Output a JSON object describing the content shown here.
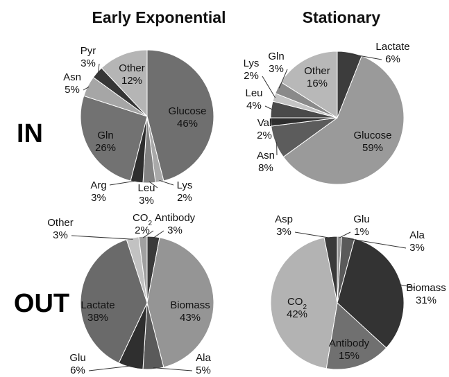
{
  "columns": [
    "Early Exponential",
    "Stationary"
  ],
  "rows": [
    "IN",
    "OUT"
  ],
  "chart_data": [
    {
      "type": "pie",
      "column": "Early Exponential",
      "row": "IN",
      "slices": [
        {
          "name": "Glucose",
          "pct": "46%",
          "value": 46,
          "color": "#6f6f6f"
        },
        {
          "name": "Lys",
          "pct": "2%",
          "value": 2,
          "color": "#a9a9a9"
        },
        {
          "name": "Leu",
          "pct": "3%",
          "value": 3,
          "color": "#838383"
        },
        {
          "name": "Arg",
          "pct": "3%",
          "value": 3,
          "color": "#2e2e2e"
        },
        {
          "name": "Gln",
          "pct": "26%",
          "value": 26,
          "color": "#727272"
        },
        {
          "name": "Asn",
          "pct": "5%",
          "value": 5,
          "color": "#a6a6a6"
        },
        {
          "name": "Pyr",
          "pct": "3%",
          "value": 3,
          "color": "#363636"
        },
        {
          "name": "Other",
          "pct": "12%",
          "value": 12,
          "color": "#b5b5b5"
        }
      ]
    },
    {
      "type": "pie",
      "column": "Stationary",
      "row": "IN",
      "slices": [
        {
          "name": "Lactate",
          "pct": "6%",
          "value": 6,
          "color": "#3c3c3c"
        },
        {
          "name": "Glucose",
          "pct": "59%",
          "value": 59,
          "color": "#9a9a9a"
        },
        {
          "name": "Asn",
          "pct": "8%",
          "value": 8,
          "color": "#5c5c5c"
        },
        {
          "name": "Val",
          "pct": "2%",
          "value": 2,
          "color": "#2e2e2e"
        },
        {
          "name": "Leu",
          "pct": "4%",
          "value": 4,
          "color": "#4a4a4a"
        },
        {
          "name": "Lys",
          "pct": "2%",
          "value": 2,
          "color": "#c4c4c4"
        },
        {
          "name": "Gln",
          "pct": "3%",
          "value": 3,
          "color": "#8a8a8a"
        },
        {
          "name": "Other",
          "pct": "16%",
          "value": 16,
          "color": "#b8b8b8"
        }
      ]
    },
    {
      "type": "pie",
      "column": "Early Exponential",
      "row": "OUT",
      "slices": [
        {
          "name": "Antibody",
          "pct": "3%",
          "value": 3,
          "color": "#3a3a3a"
        },
        {
          "name": "Biomass",
          "pct": "43%",
          "value": 43,
          "color": "#959595"
        },
        {
          "name": "Ala",
          "pct": "5%",
          "value": 5,
          "color": "#5a5a5a"
        },
        {
          "name": "Glu",
          "pct": "6%",
          "value": 6,
          "color": "#2f2f2f"
        },
        {
          "name": "Lactate",
          "pct": "38%",
          "value": 38,
          "color": "#6a6a6a"
        },
        {
          "name": "Other",
          "pct": "3%",
          "value": 3,
          "color": "#c2c2c2"
        },
        {
          "name": "CO",
          "sub": "2",
          "pct": "2%",
          "value": 2,
          "color": "#a0a0a0"
        }
      ]
    },
    {
      "type": "pie",
      "column": "Stationary",
      "row": "OUT",
      "slices": [
        {
          "name": "Glu",
          "pct": "1%",
          "value": 1,
          "color": "#9a9a9a"
        },
        {
          "name": "Ala",
          "pct": "3%",
          "value": 3,
          "color": "#5a5a5a"
        },
        {
          "name": "Biomass",
          "pct": "31%",
          "value": 31,
          "color": "#333333"
        },
        {
          "name": "Antibody",
          "pct": "15%",
          "value": 15,
          "color": "#707070"
        },
        {
          "name": "CO",
          "sub": "2",
          "pct": "42%",
          "value": 42,
          "color": "#b3b3b3"
        },
        {
          "name": "Asp",
          "pct": "3%",
          "value": 3,
          "color": "#3a3a3a"
        }
      ]
    }
  ]
}
